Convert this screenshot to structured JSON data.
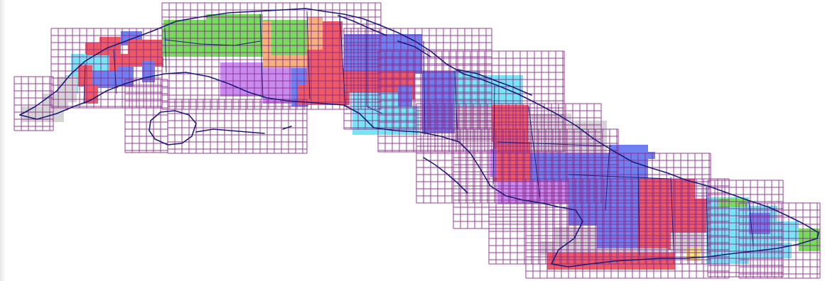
{
  "map": {
    "subject": "Cuba",
    "colors": {
      "grid_line": "#8b2a8b",
      "coastline": "#1a1a7a",
      "divisions": "#1a1a7a",
      "background": "#ffffff",
      "red": "#ee5a64",
      "blue": "#6e7ff0",
      "cyan": "#76e6f4",
      "green": "#76dc5c",
      "orange": "#f5b27a",
      "purple": "#c88cf0",
      "gray": "#d4d4d4",
      "yellow": "#f6ec6c"
    },
    "legend": null,
    "labels": []
  }
}
